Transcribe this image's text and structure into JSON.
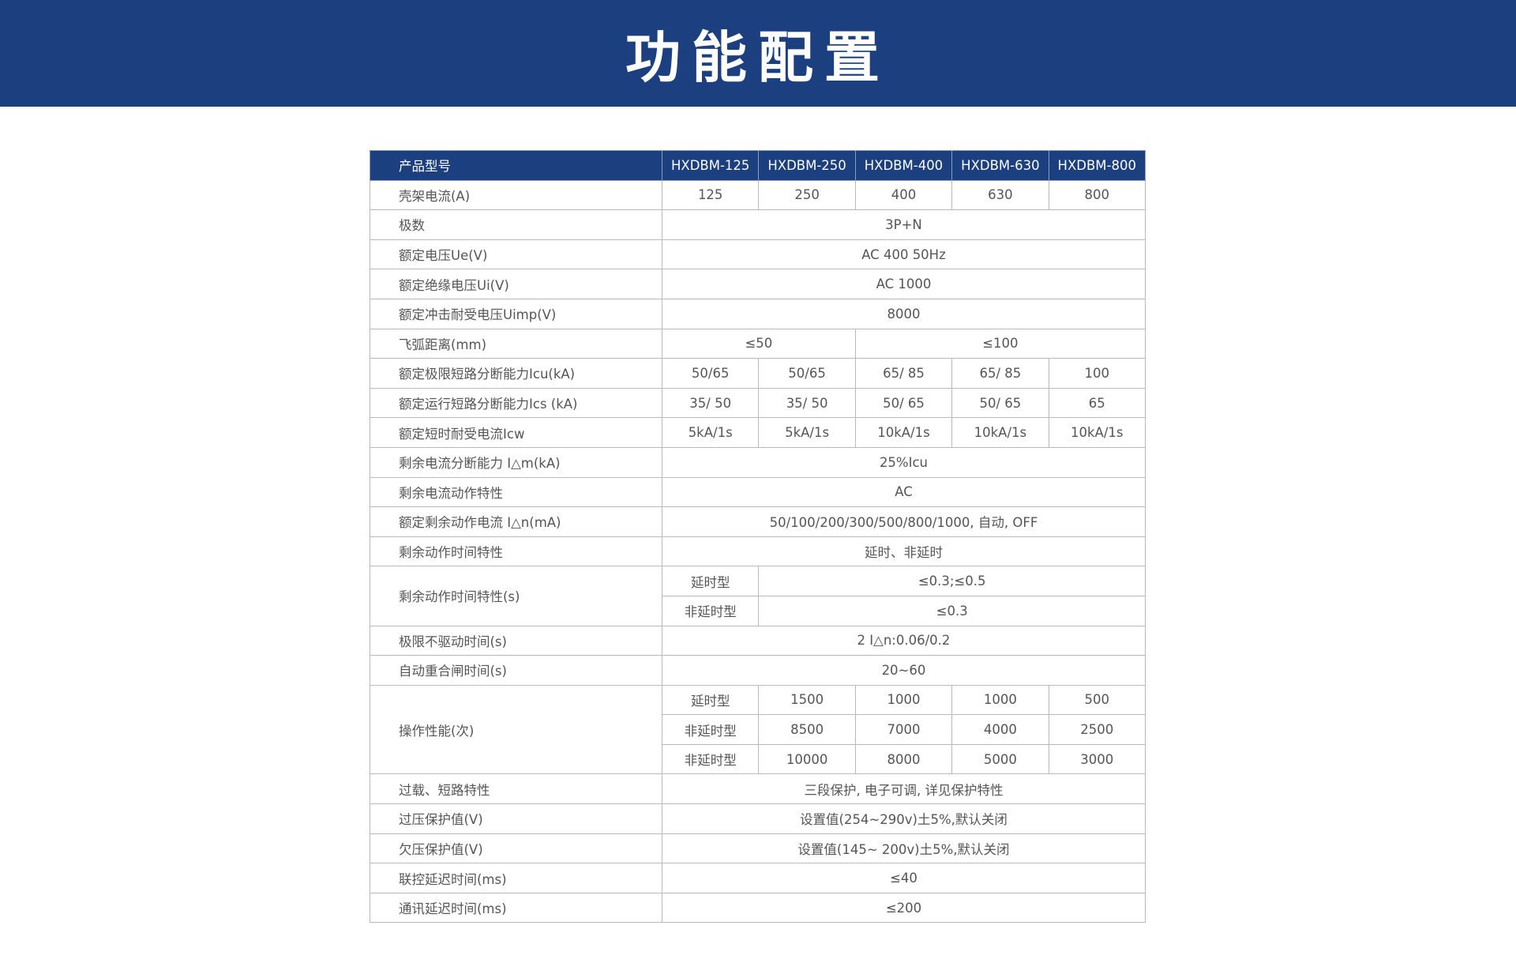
{
  "title": "功能配置",
  "header": {
    "label": "产品型号",
    "models": [
      "HXDBM-125",
      "HXDBM-250",
      "HXDBM-400",
      "HXDBM-630",
      "HXDBM-800"
    ]
  },
  "rows": {
    "frame_current": {
      "label": "壳架电流(A)",
      "values": [
        "125",
        "250",
        "400",
        "630",
        "800"
      ]
    },
    "poles": {
      "label": "极数",
      "value": "3P+N"
    },
    "ue": {
      "label": "额定电压Ue(V)",
      "value": "AC 400 50Hz"
    },
    "ui": {
      "label": "额定绝缘电压Ui(V)",
      "value": "AC 1000"
    },
    "uimp": {
      "label": "额定冲击耐受电压Uimp(V)",
      "value": "8000"
    },
    "arc": {
      "label": "飞弧距离(mm)",
      "values": [
        "≤50",
        "≤100"
      ]
    },
    "icu": {
      "label": "额定极限短路分断能力Icu(kA)",
      "values": [
        "50/65",
        "50/65",
        "65/ 85",
        "65/ 85",
        "100"
      ]
    },
    "ics": {
      "label": "额定运行短路分断能力Ics (kA)",
      "values": [
        "35/ 50",
        "35/ 50",
        "50/ 65",
        "50/ 65",
        "65"
      ]
    },
    "icw": {
      "label": "额定短时耐受电流Icw",
      "values": [
        "5kA/1s",
        "5kA/1s",
        "10kA/1s",
        "10kA/1s",
        "10kA/1s"
      ]
    },
    "idm": {
      "label": "剩余电流分断能力 I△m(kA)",
      "value": "25%Icu"
    },
    "rc_char": {
      "label": "剩余电流动作特性",
      "value": "AC"
    },
    "idn": {
      "label": "额定剩余动作电流 I△n(mA)",
      "value": "50/100/200/300/500/800/1000, 自动, OFF"
    },
    "rt_char": {
      "label": "剩余动作时间特性",
      "value": "延时、非延时"
    },
    "rt_s": {
      "label": "剩余动作时间特性(s)",
      "sub": [
        {
          "type": "延时型",
          "value": "≤0.3;≤0.5"
        },
        {
          "type": "非延时型",
          "value": "≤0.3"
        }
      ]
    },
    "nodrive": {
      "label": "极限不驱动时间(s)",
      "value": "2 I△n:0.06/0.2"
    },
    "reclose": {
      "label": "自动重合闸时间(s)",
      "value": "20~60"
    },
    "ops": {
      "label": "操作性能(次)",
      "sub": [
        {
          "type": "延时型",
          "values": [
            "1500",
            "1000",
            "1000",
            "500"
          ]
        },
        {
          "type": "非延时型",
          "values": [
            "8500",
            "7000",
            "4000",
            "2500"
          ]
        },
        {
          "type": "非延时型",
          "values": [
            "10000",
            "8000",
            "5000",
            "3000"
          ]
        }
      ]
    },
    "overload": {
      "label": "过载、短路特性",
      "value": "三段保护, 电子可调, 详见保护特性"
    },
    "ov": {
      "label": "过压保护值(V)",
      "value": "设置值(254~290v)土5%,默认关闭"
    },
    "uv": {
      "label": "欠压保护值(V)",
      "value": "设置值(145~ 200v)土5%,默认关闭"
    },
    "link": {
      "label": "联控延迟时间(ms)",
      "value": "≤40"
    },
    "comm": {
      "label": "通讯延迟时间(ms)",
      "value": "≤200"
    }
  },
  "colors": {
    "banner": "#1b3f7f",
    "header": "#1b3f7f",
    "text": "#555555",
    "border": "#b9b9b9"
  }
}
